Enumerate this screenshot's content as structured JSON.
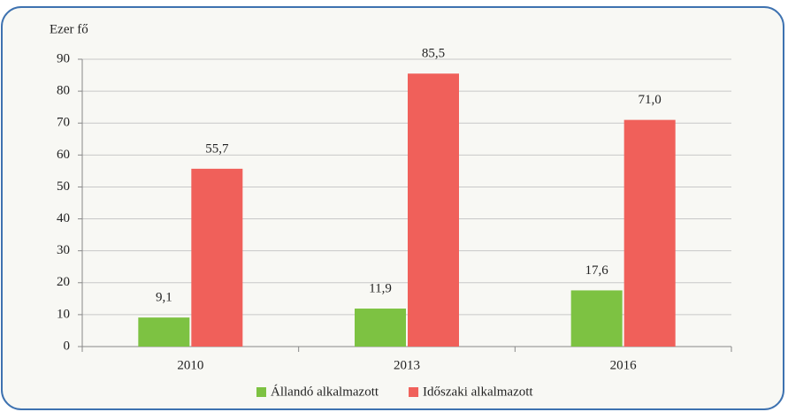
{
  "chart_data": {
    "type": "bar",
    "y_label": "Ezer fő",
    "categories": [
      "2010",
      "2013",
      "2016"
    ],
    "series": [
      {
        "name": "Állandó alkalmazott",
        "color": "#7dc242",
        "values": [
          9.1,
          11.9,
          17.6
        ],
        "value_labels": [
          "9,1",
          "11,9",
          "17,6"
        ]
      },
      {
        "name": "Időszaki alkalmazott",
        "color": "#f0605a",
        "values": [
          55.7,
          85.5,
          71.0
        ],
        "value_labels": [
          "55,7",
          "85,5",
          "71,0"
        ]
      }
    ],
    "ylim": [
      0,
      90
    ],
    "yticks": [
      0,
      10,
      20,
      30,
      40,
      50,
      60,
      70,
      80,
      90
    ],
    "grid": true,
    "legend": "bottom"
  }
}
